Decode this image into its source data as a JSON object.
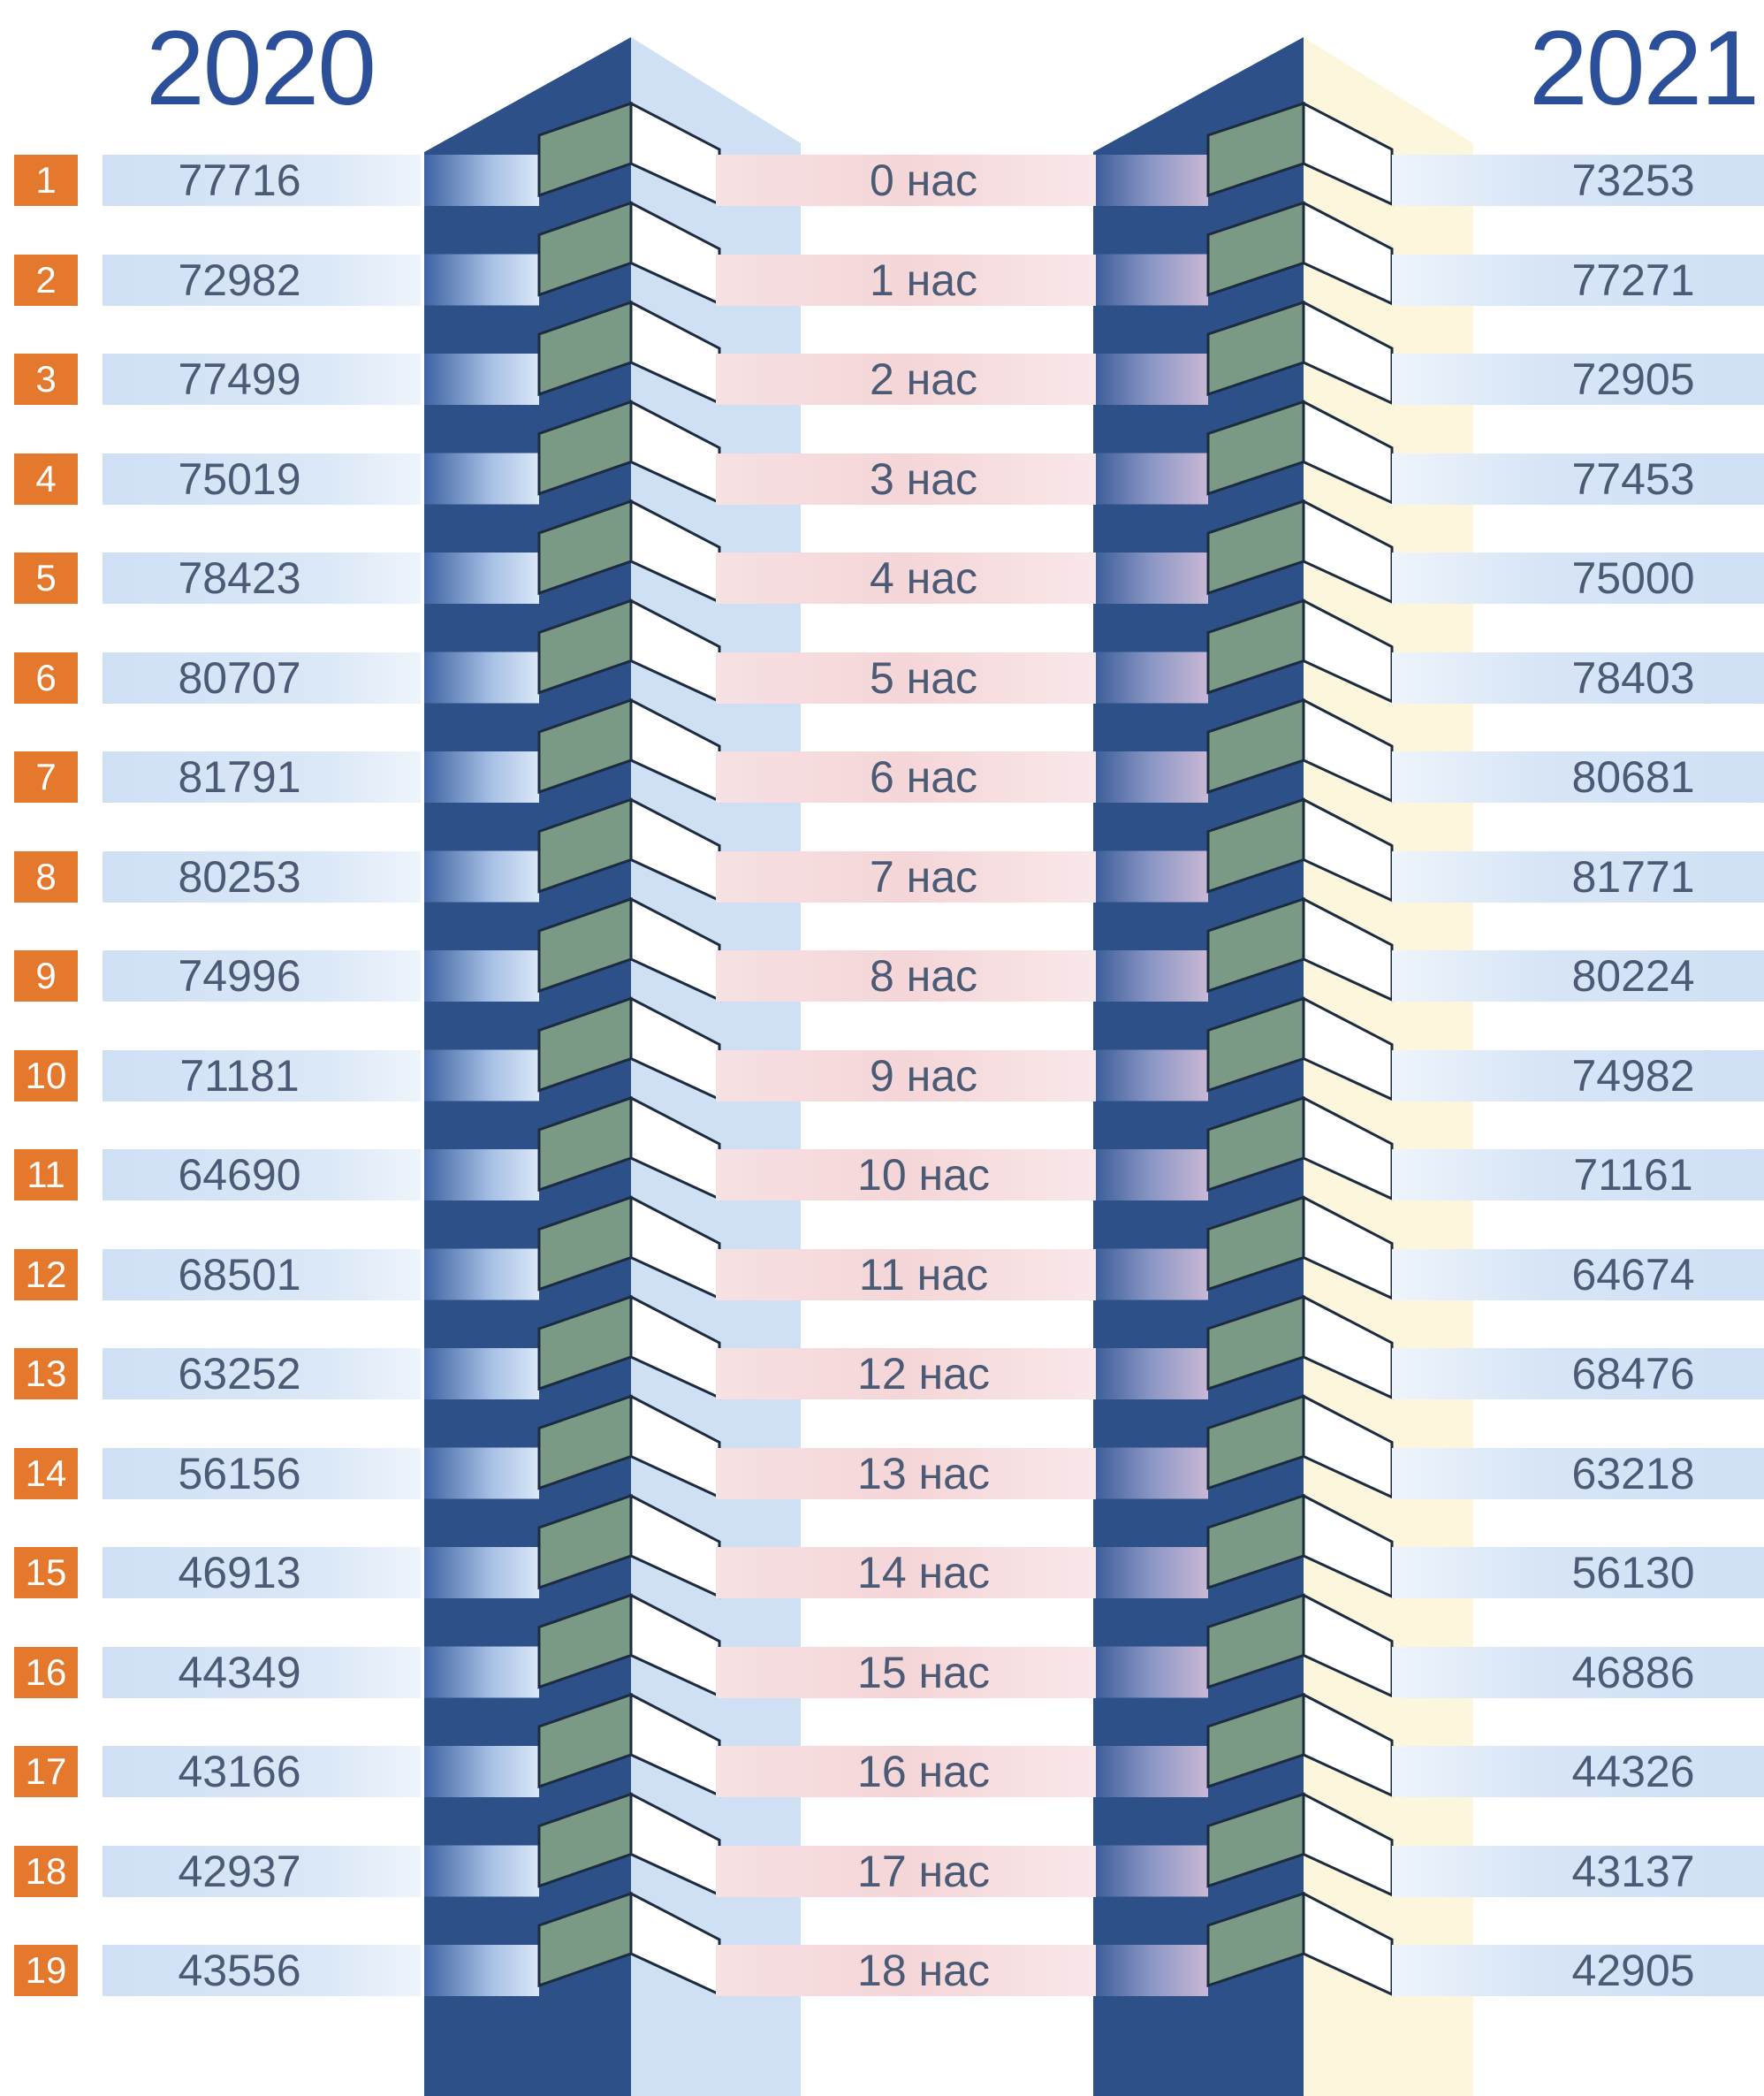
{
  "header": {
    "year_left": "2020",
    "year_right": "2021"
  },
  "colors": {
    "accent": "#2c4f9a",
    "badge": "#e4782c",
    "tower": "#2d5088"
  },
  "chart_data": {
    "type": "table",
    "title": "",
    "categories": [
      "0 нас",
      "1 нас",
      "2 нас",
      "3 нас",
      "4 нас",
      "5 нас",
      "6 нас",
      "7 нас",
      "8 нас",
      "9 нас",
      "10 нас",
      "11 нас",
      "12 нас",
      "13 нас",
      "14 нас",
      "15 нас",
      "16 нас",
      "17 нас",
      "18 нас"
    ],
    "row_numbers": [
      "1",
      "2",
      "3",
      "4",
      "5",
      "6",
      "7",
      "8",
      "9",
      "10",
      "11",
      "12",
      "13",
      "14",
      "15",
      "16",
      "17",
      "18",
      "19"
    ],
    "series": [
      {
        "name": "2020",
        "values": [
          77716,
          72982,
          77499,
          75019,
          78423,
          80707,
          81791,
          80253,
          74996,
          71181,
          64690,
          68501,
          63252,
          56156,
          46913,
          44349,
          43166,
          42937,
          43556
        ]
      },
      {
        "name": "2021",
        "values": [
          73253,
          77271,
          72905,
          77453,
          75000,
          78403,
          80681,
          81771,
          80224,
          74982,
          71161,
          64674,
          68476,
          63218,
          56130,
          46886,
          44326,
          43137,
          42905
        ]
      }
    ]
  }
}
